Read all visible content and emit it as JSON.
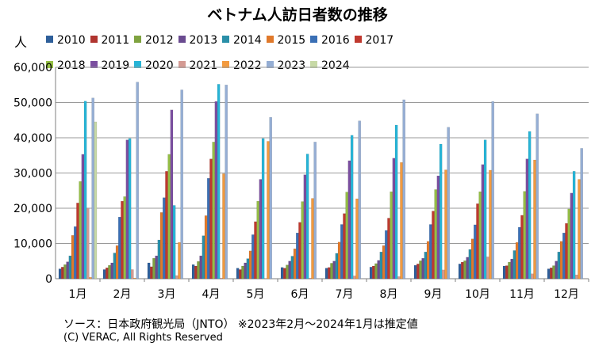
{
  "title": "ベトナム人訪日者数の推移",
  "unit_label": "人",
  "source": "ソース：日本政府観光局（JNTO） ※2023年2月～2024年1月は推定値",
  "copyright": "(C) VERAC, All Rights Reserved",
  "chart_data": {
    "type": "bar",
    "categories": [
      "1月",
      "2月",
      "3月",
      "4月",
      "5月",
      "6月",
      "7月",
      "8月",
      "9月",
      "10月",
      "11月",
      "12月"
    ],
    "ylim": [
      0,
      60000
    ],
    "yticks": [
      "0",
      "10,000",
      "20,000",
      "30,000",
      "40,000",
      "50,000",
      "60,000"
    ],
    "ytick_values": [
      0,
      10000,
      20000,
      30000,
      40000,
      50000,
      60000
    ],
    "grid": true,
    "legend_position": "top",
    "series": [
      {
        "name": "2010",
        "color": "#2e5f9a",
        "values": [
          2800,
          2600,
          4500,
          4000,
          3000,
          3200,
          3000,
          3300,
          3800,
          4200,
          3600,
          2800
        ]
      },
      {
        "name": "2011",
        "color": "#b0342f",
        "values": [
          3300,
          3100,
          3400,
          3600,
          2600,
          3000,
          3200,
          3600,
          4200,
          4700,
          3700,
          3100
        ]
      },
      {
        "name": "2012",
        "color": "#7fa340",
        "values": [
          4000,
          3800,
          5800,
          4900,
          3600,
          3900,
          4400,
          4300,
          5100,
          5100,
          4700,
          3700
        ]
      },
      {
        "name": "2013",
        "color": "#6a4b90",
        "values": [
          4800,
          4500,
          6500,
          6500,
          4500,
          5000,
          5000,
          5200,
          5800,
          6100,
          5600,
          5000
        ]
      },
      {
        "name": "2014",
        "color": "#2a8fa8",
        "values": [
          6500,
          7300,
          11000,
          12200,
          5700,
          6400,
          7200,
          7600,
          7600,
          8300,
          8000,
          7600
        ]
      },
      {
        "name": "2015",
        "color": "#e0792b",
        "values": [
          12300,
          9400,
          18800,
          17900,
          7900,
          8500,
          10400,
          9400,
          10600,
          11300,
          10300,
          10600
        ]
      },
      {
        "name": "2016",
        "color": "#3a6fb5",
        "values": [
          14800,
          17500,
          23000,
          28500,
          12500,
          13000,
          15400,
          13700,
          15400,
          15300,
          14600,
          13000
        ]
      },
      {
        "name": "2017",
        "color": "#c0392f",
        "values": [
          21500,
          22000,
          30500,
          34000,
          16200,
          16000,
          18500,
          17200,
          19200,
          21300,
          18000,
          15700
        ]
      },
      {
        "name": "2018",
        "color": "#95bf45",
        "values": [
          27600,
          23300,
          35300,
          38800,
          22000,
          21900,
          24600,
          24700,
          25300,
          24700,
          24800,
          19800
        ]
      },
      {
        "name": "2019",
        "color": "#7b4fa0",
        "values": [
          35300,
          39400,
          47900,
          50300,
          28200,
          29500,
          33500,
          34200,
          29200,
          32400,
          34000,
          24300
        ]
      },
      {
        "name": "2020",
        "color": "#27b4d6",
        "values": [
          50400,
          39800,
          20800,
          55200,
          39800,
          35400,
          40700,
          43600,
          38200,
          39400,
          41800,
          30500
        ]
      },
      {
        "name": "2021",
        "color": "#d49a93",
        "values": [
          20000,
          2600,
          900,
          200,
          100,
          200,
          800,
          600,
          2500,
          6200,
          1400,
          1100
        ]
      },
      {
        "name": "2022",
        "color": "#f39a3e",
        "values": [
          400,
          200,
          10300,
          29800,
          39000,
          22800,
          22700,
          33000,
          30900,
          30800,
          33700,
          28200
        ]
      },
      {
        "name": "2023",
        "color": "#95aed4",
        "values": [
          51300,
          55800,
          53600,
          55000,
          45800,
          38800,
          44800,
          50800,
          43000,
          50300,
          46800,
          37000
        ]
      },
      {
        "name": "2024",
        "color": "#c7d9a6",
        "values": [
          44500,
          null,
          null,
          null,
          null,
          null,
          null,
          null,
          null,
          null,
          null,
          null
        ]
      }
    ]
  }
}
